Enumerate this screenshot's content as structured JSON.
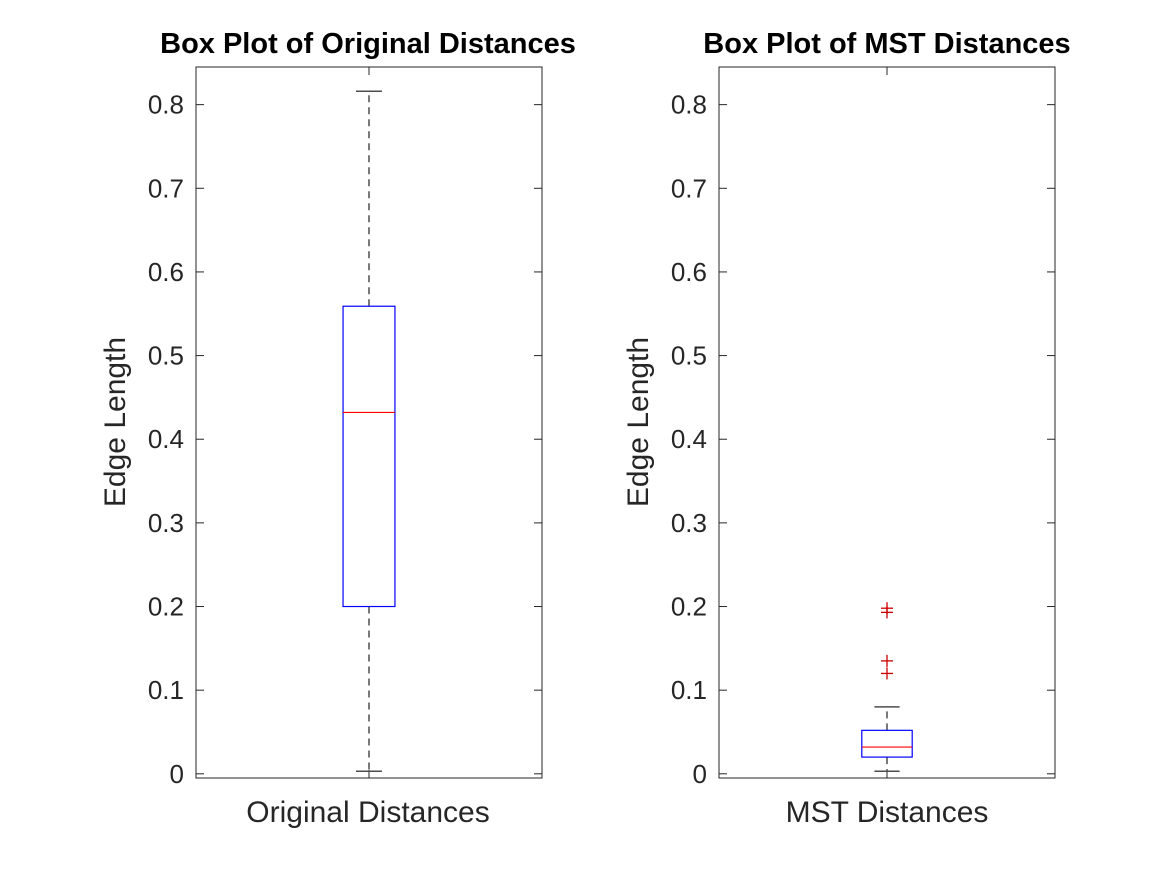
{
  "chart_data": [
    {
      "type": "box",
      "title": "Box Plot of Original Distances",
      "xlabel": "",
      "ylabel": "Edge Length",
      "ylim": [
        -0.005,
        0.845
      ],
      "yticks": [
        0,
        0.1,
        0.2,
        0.3,
        0.4,
        0.5,
        0.6,
        0.7,
        0.8
      ],
      "yticklabels": [
        "0",
        "0.1",
        "0.2",
        "0.3",
        "0.4",
        "0.5",
        "0.6",
        "0.7",
        "0.8"
      ],
      "categories": [
        "Original Distances"
      ],
      "boxes": [
        {
          "min": 0.003,
          "q1": 0.2,
          "median": 0.432,
          "q3": 0.559,
          "max": 0.816,
          "outliers": []
        }
      ],
      "grid": false
    },
    {
      "type": "box",
      "title": "Box Plot of MST Distances",
      "xlabel": "",
      "ylabel": "Edge Length",
      "ylim": [
        -0.005,
        0.845
      ],
      "yticks": [
        0,
        0.1,
        0.2,
        0.3,
        0.4,
        0.5,
        0.6,
        0.7,
        0.8
      ],
      "yticklabels": [
        "0",
        "0.1",
        "0.2",
        "0.3",
        "0.4",
        "0.5",
        "0.6",
        "0.7",
        "0.8"
      ],
      "categories": [
        "MST Distances"
      ],
      "boxes": [
        {
          "min": 0.003,
          "q1": 0.02,
          "median": 0.032,
          "q3": 0.052,
          "max": 0.08,
          "outliers": [
            0.193,
            0.198,
            0.12,
            0.135
          ]
        }
      ],
      "grid": false
    }
  ],
  "colors": {
    "box": "#0000ff",
    "median": "#ff0000",
    "whisker": "#4d4d4d",
    "outlier": "#cc0000",
    "axis": "#262626"
  }
}
